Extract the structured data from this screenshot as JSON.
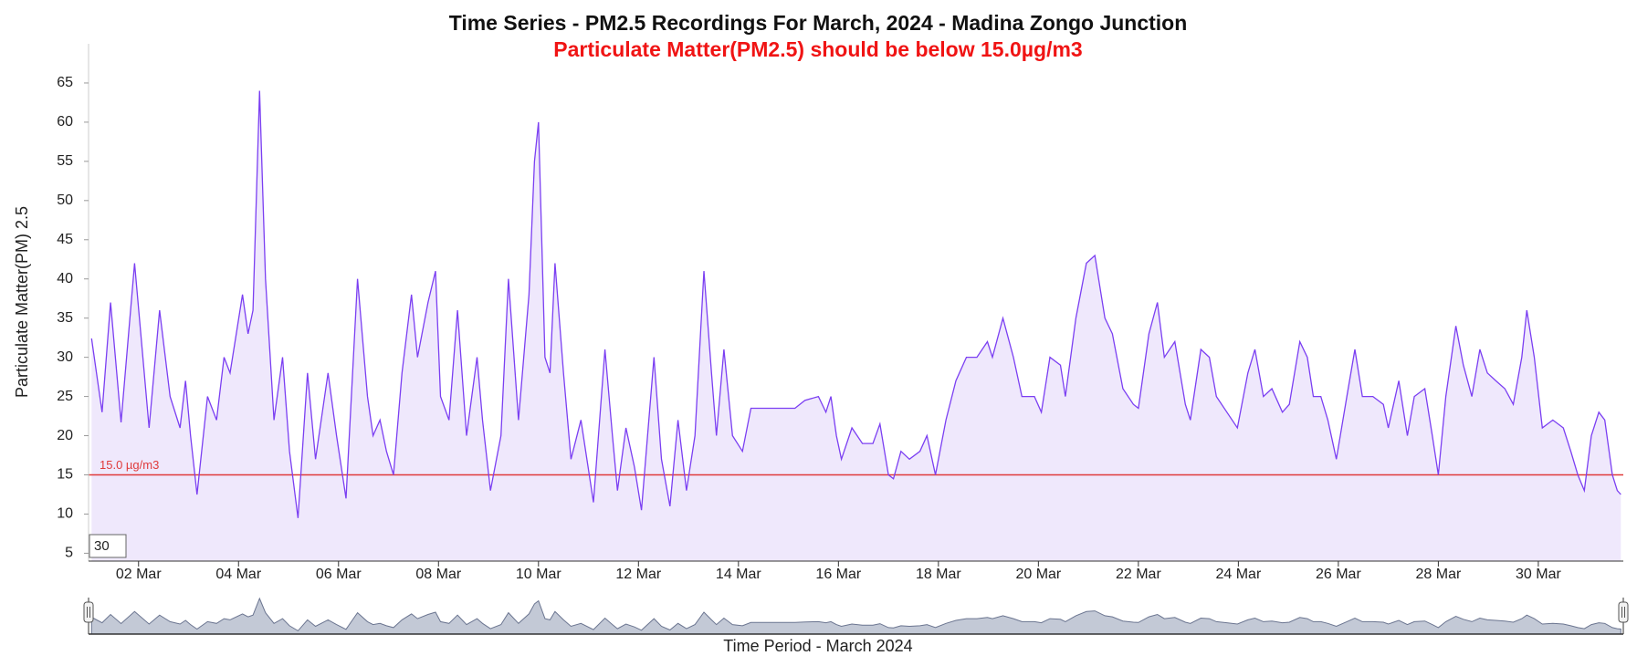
{
  "chart_data": {
    "type": "area",
    "title": "Time Series - PM2.5 Recordings For March, 2024 - Madina Zongo Junction",
    "subtitle": "Particulate Matter(PM2.5) should be below 15.0µg/m3",
    "y_label": "Particulate Matter(PM) 2.5",
    "x_label": "Time Period - March 2024",
    "input_value": 30,
    "threshold": 15,
    "threshold_label": "15.0 µg/m3",
    "threshold_color": "#e03a3a",
    "color": "#7b3ff2",
    "fill_color": "#efe8fc",
    "xlim": [
      1,
      31.7
    ],
    "ylim": [
      4,
      70
    ],
    "yticks": [
      5,
      10,
      15,
      20,
      25,
      30,
      35,
      40,
      45,
      50,
      55,
      60,
      65
    ],
    "xticks": [
      {
        "value": 2,
        "label": "02 Mar"
      },
      {
        "value": 4,
        "label": "04 Mar"
      },
      {
        "value": 6,
        "label": "06 Mar"
      },
      {
        "value": 8,
        "label": "08 Mar"
      },
      {
        "value": 10,
        "label": "10 Mar"
      },
      {
        "value": 12,
        "label": "12 Mar"
      },
      {
        "value": 14,
        "label": "14 Mar"
      },
      {
        "value": 16,
        "label": "16 Mar"
      },
      {
        "value": 18,
        "label": "18 Mar"
      },
      {
        "value": 20,
        "label": "20 Mar"
      },
      {
        "value": 22,
        "label": "22 Mar"
      },
      {
        "value": 24,
        "label": "24 Mar"
      },
      {
        "value": 26,
        "label": "26 Mar"
      },
      {
        "value": 28,
        "label": "28 Mar"
      },
      {
        "value": 30,
        "label": "30 Mar"
      }
    ],
    "x": [
      1.06,
      1.27,
      1.44,
      1.65,
      1.92,
      2.21,
      2.42,
      2.63,
      2.83,
      2.94,
      3.04,
      3.17,
      3.38,
      3.56,
      3.71,
      3.83,
      4.08,
      4.19,
      4.29,
      4.42,
      4.54,
      4.71,
      4.88,
      5.02,
      5.19,
      5.38,
      5.54,
      5.79,
      5.96,
      6.15,
      6.38,
      6.58,
      6.69,
      6.83,
      6.96,
      7.1,
      7.27,
      7.46,
      7.58,
      7.79,
      7.94,
      8.04,
      8.21,
      8.38,
      8.56,
      8.77,
      8.88,
      9.04,
      9.25,
      9.4,
      9.6,
      9.81,
      9.92,
      10.0,
      10.13,
      10.23,
      10.33,
      10.5,
      10.65,
      10.85,
      11.1,
      11.33,
      11.48,
      11.58,
      11.75,
      11.92,
      12.06,
      12.31,
      12.46,
      12.63,
      12.79,
      12.96,
      13.13,
      13.31,
      13.46,
      13.56,
      13.71,
      13.88,
      14.08,
      14.25,
      15.13,
      15.33,
      15.6,
      15.75,
      15.85,
      15.96,
      16.06,
      16.27,
      16.48,
      16.69,
      16.83,
      17.0,
      17.1,
      17.25,
      17.42,
      17.63,
      17.77,
      17.94,
      18.15,
      18.35,
      18.56,
      18.77,
      18.98,
      19.08,
      19.29,
      19.5,
      19.67,
      19.92,
      20.06,
      20.23,
      20.44,
      20.54,
      20.75,
      20.96,
      21.13,
      21.33,
      21.48,
      21.69,
      21.9,
      22.0,
      22.21,
      22.38,
      22.52,
      22.73,
      22.94,
      23.04,
      23.25,
      23.42,
      23.56,
      23.77,
      23.98,
      24.19,
      24.33,
      24.5,
      24.67,
      24.88,
      25.02,
      25.23,
      25.38,
      25.5,
      25.65,
      25.79,
      25.96,
      26.17,
      26.33,
      26.48,
      26.69,
      26.9,
      27.0,
      27.21,
      27.38,
      27.52,
      27.73,
      27.88,
      28.0,
      28.15,
      28.35,
      28.5,
      28.67,
      28.83,
      28.98,
      29.15,
      29.33,
      29.5,
      29.67,
      29.77,
      29.92,
      30.08,
      30.29,
      30.5,
      30.65,
      30.79,
      30.92,
      31.06,
      31.21,
      31.33,
      31.48,
      31.58,
      31.65
    ],
    "values": [
      32.4,
      23,
      37,
      21.7,
      42,
      21,
      36,
      25,
      21,
      27,
      20,
      12.5,
      25,
      22,
      30,
      28,
      38,
      33,
      36,
      64,
      40,
      22,
      30,
      18,
      9.5,
      28,
      17,
      28,
      20,
      12,
      40,
      25,
      20,
      22,
      18,
      15,
      28,
      38,
      30,
      37,
      41,
      25,
      22,
      36,
      20,
      30,
      22,
      13,
      20,
      40,
      22,
      38,
      55,
      60,
      30,
      28,
      42,
      28,
      17,
      22,
      11.5,
      31,
      20,
      13,
      21,
      16,
      10.5,
      30,
      17,
      11,
      22,
      13,
      20,
      41,
      28,
      20,
      31,
      20,
      18,
      23.5,
      23.5,
      24.5,
      25,
      23,
      25,
      20,
      17,
      21,
      19,
      19,
      21.5,
      15,
      14.5,
      18,
      17,
      18,
      20,
      15,
      22,
      27,
      30,
      30,
      32,
      30,
      35,
      30,
      25,
      25,
      23,
      30,
      29,
      25,
      35,
      42,
      43,
      35,
      33,
      26,
      24,
      23.5,
      33,
      37,
      30,
      32,
      24,
      22,
      31,
      30,
      25,
      23,
      21,
      28,
      31,
      25,
      26,
      23,
      24,
      32,
      30,
      25,
      25,
      22,
      17,
      25,
      31,
      25,
      25,
      24,
      21,
      27,
      20,
      25,
      26,
      20,
      15,
      25,
      34,
      29,
      25,
      31,
      28,
      27,
      26,
      24,
      30,
      36,
      30,
      21,
      22,
      21,
      18,
      15,
      13,
      20,
      23,
      22,
      15,
      13,
      12.5
    ]
  }
}
